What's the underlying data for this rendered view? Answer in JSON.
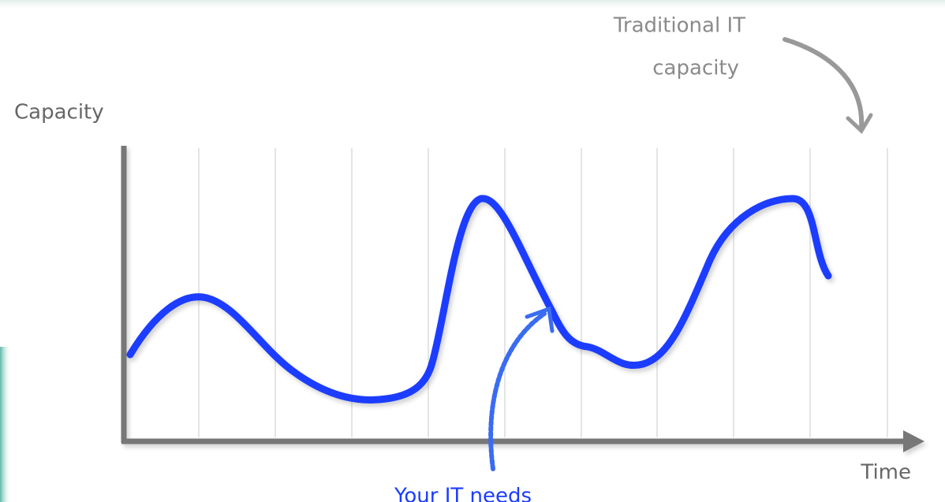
{
  "y_axis_label": "Capacity",
  "x_axis_label": "Time",
  "annotations": [
    {
      "lines": [
        "Traditional IT",
        "capacity"
      ]
    },
    {
      "lines": [
        "Your IT needs"
      ]
    }
  ]
}
